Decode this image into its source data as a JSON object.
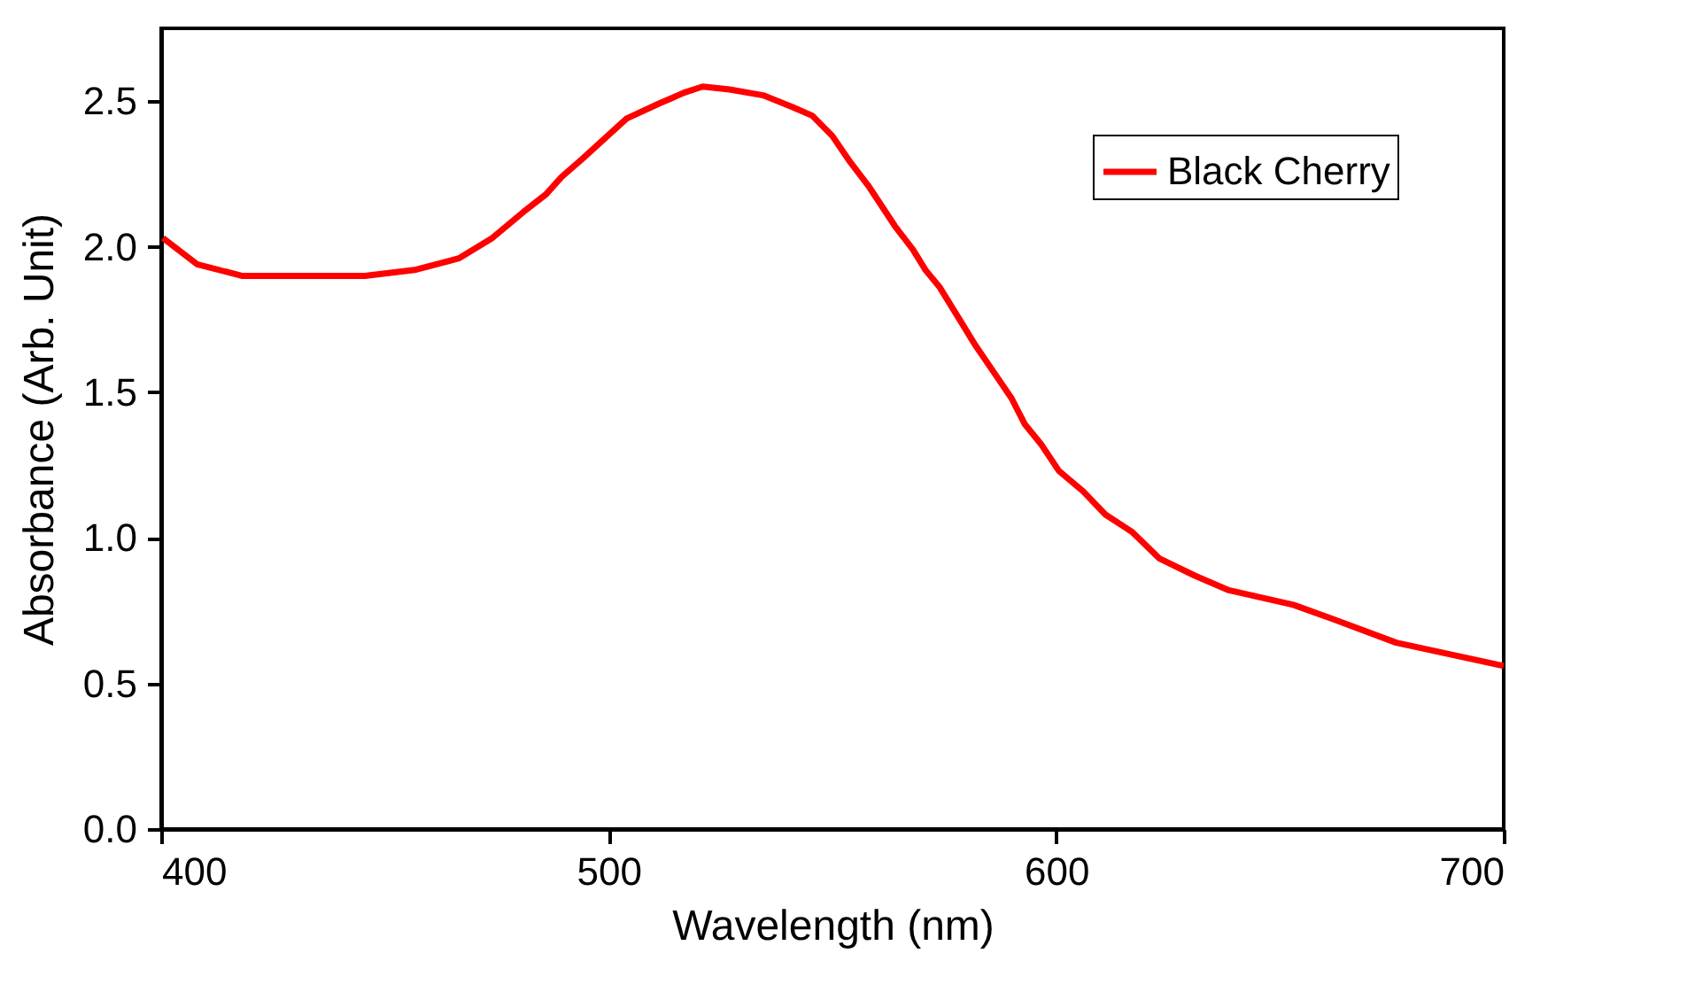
{
  "chart_data": {
    "type": "line",
    "xlabel": "Wavelength (nm)",
    "ylabel": "Absorbance (Arb. Unit)",
    "x": [
      400.4,
      408,
      418,
      428,
      445.5,
      456.6,
      466.5,
      474,
      481,
      486,
      489.5,
      494,
      499,
      504,
      511,
      517,
      521,
      527,
      534.5,
      541,
      545.5,
      550,
      554,
      558,
      561,
      564,
      568,
      570.8,
      574,
      578,
      582,
      586,
      590,
      593,
      596.7,
      600.6,
      606,
      611,
      617,
      623,
      631,
      638.6,
      653,
      662,
      676,
      700
    ],
    "series": [
      {
        "name": "Black Cherry",
        "color": "#ff0000",
        "values": [
          2.03,
          1.94,
          1.9,
          1.9,
          1.9,
          1.92,
          1.96,
          2.03,
          2.12,
          2.18,
          2.24,
          2.3,
          2.37,
          2.44,
          2.49,
          2.53,
          2.55,
          2.54,
          2.52,
          2.48,
          2.45,
          2.38,
          2.29,
          2.21,
          2.14,
          2.07,
          1.99,
          1.92,
          1.86,
          1.76,
          1.66,
          1.57,
          1.48,
          1.39,
          1.32,
          1.23,
          1.16,
          1.08,
          1.02,
          0.93,
          0.87,
          0.82,
          0.77,
          0.72,
          0.64,
          0.56
        ]
      }
    ],
    "xlim": [
      400,
      700
    ],
    "xticks": [
      400,
      500,
      600,
      700
    ],
    "ylim": [
      0,
      2.75
    ],
    "yticks": [
      {
        "value": 0,
        "label": "0.0"
      },
      {
        "value": 0.5,
        "label": "0.5"
      },
      {
        "value": 1,
        "label": "1.0"
      },
      {
        "value": 1.5,
        "label": "1.5"
      },
      {
        "value": 2,
        "label": "2.0"
      },
      {
        "value": 2.5,
        "label": "2.5"
      }
    ],
    "legend": "top right",
    "grid": false,
    "line_style": "solid",
    "marker": "none"
  }
}
